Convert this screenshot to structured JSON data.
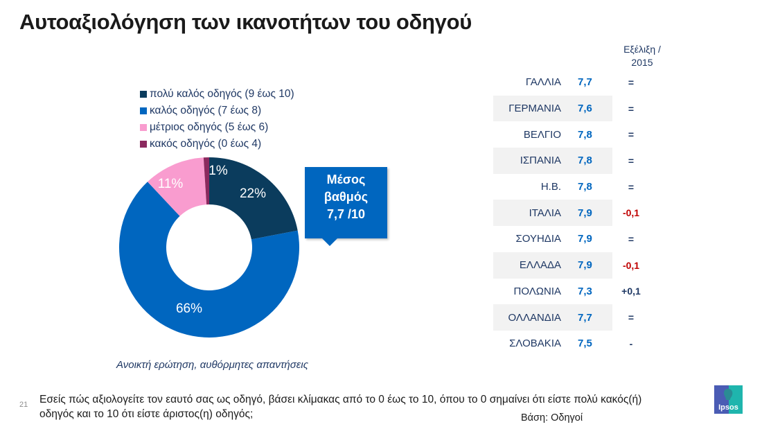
{
  "title": "Αυτοαξιολόγηση των ικανοτήτων του οδηγού",
  "chart_data": {
    "type": "pie",
    "variant": "donut",
    "title": "Αυτοαξιολόγηση των ικανοτήτων του οδηγού",
    "categories": [
      "πολύ καλός οδηγός (9 έως 10)",
      "καλός οδηγός (7 έως 8)",
      "μέτριος οδηγός (5 έως 6)",
      "κακός οδηγός (0 έως 4)"
    ],
    "values": [
      22,
      66,
      11,
      1
    ],
    "labels": [
      "22%",
      "66%",
      "11%",
      "1%"
    ],
    "colors": [
      "#0b3c5d",
      "#0066bf",
      "#f99ccf",
      "#8b2a5e"
    ],
    "legend_position": "top"
  },
  "legend": [
    {
      "label": "πολύ καλός οδηγός (9 έως 10)",
      "color": "#0b3c5d"
    },
    {
      "label": "καλός οδηγός (7 έως 8)",
      "color": "#0066bf"
    },
    {
      "label": "μέτριος οδηγός (5 έως 6)",
      "color": "#f99ccf"
    },
    {
      "label": "κακός οδηγός (0 έως 4)",
      "color": "#8b2a5e"
    }
  ],
  "callout": {
    "line1": "Μέσος",
    "line2": "βαθμός",
    "line3": "7,7 /10"
  },
  "caption": "Ανοικτή ερώτηση, αυθόρμητες απαντήσεις",
  "table": {
    "evolution_header_line1": "Εξέλιξη /",
    "evolution_header_line2": "2015",
    "rows": [
      {
        "country": "ΓΑΛΛΙΑ",
        "score": "7,7",
        "evolution": "=",
        "negative": false
      },
      {
        "country": "ΓΕΡΜΑΝΙΑ",
        "score": "7,6",
        "evolution": "=",
        "negative": false
      },
      {
        "country": "ΒΕΛΓΙΟ",
        "score": "7,8",
        "evolution": "=",
        "negative": false
      },
      {
        "country": "ΙΣΠΑΝΙΑ",
        "score": "7,8",
        "evolution": "=",
        "negative": false
      },
      {
        "country": "Η.Β.",
        "score": "7,8",
        "evolution": "=",
        "negative": false
      },
      {
        "country": "ΙΤΑΛΙΑ",
        "score": "7,9",
        "evolution": "-0,1",
        "negative": true
      },
      {
        "country": "ΣΟΥΗΔΙΑ",
        "score": "7,9",
        "evolution": "=",
        "negative": false
      },
      {
        "country": "ΕΛΛΑΔΑ",
        "score": "7,9",
        "evolution": "-0,1",
        "negative": true
      },
      {
        "country": "ΠΟΛΩΝΙΑ",
        "score": "7,3",
        "evolution": "+0,1",
        "negative": false
      },
      {
        "country": "ΟΛΛΑΝΔΙΑ",
        "score": "7,7",
        "evolution": "=",
        "negative": false
      },
      {
        "country": "ΣΛΟΒΑΚΙΑ",
        "score": "7,5",
        "evolution": "-",
        "negative": false
      }
    ]
  },
  "footer": {
    "page_number": "21",
    "question": "Εσείς πώς αξιολογείτε τον εαυτό σας ως οδηγό, βάσει κλίμακας από το 0 έως το 10, όπου το 0 σημαίνει ότι είστε πολύ κακός(ή) οδηγός και το 10 ότι είστε άριστος(η) οδηγός;",
    "base": "Βάση: Οδηγοί",
    "logo_text": "Ipsos"
  }
}
